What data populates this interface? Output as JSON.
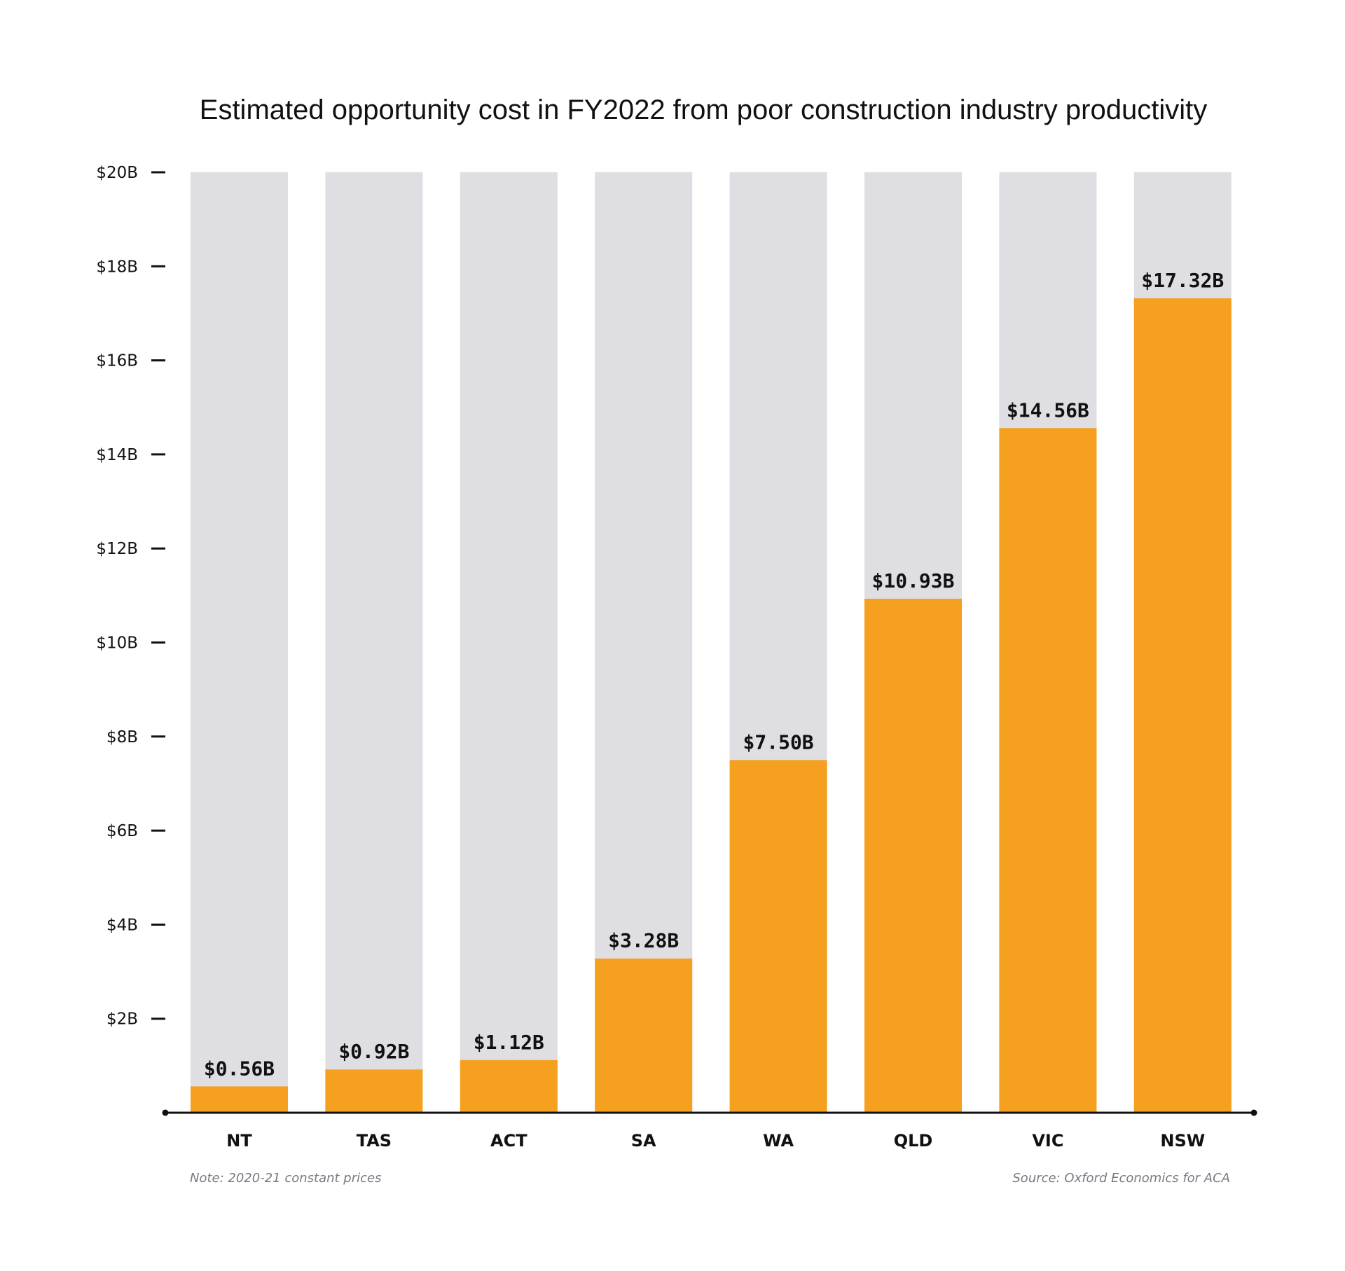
{
  "chart_data": {
    "type": "bar",
    "title": "Estimated opportunity cost in FY2022 from poor construction industry productivity",
    "categories": [
      "NT",
      "TAS",
      "ACT",
      "SA",
      "WA",
      "QLD",
      "VIC",
      "NSW"
    ],
    "values": [
      0.56,
      0.92,
      1.12,
      3.28,
      7.5,
      10.93,
      14.56,
      17.32
    ],
    "value_labels": [
      "$0.56B",
      "$0.92B",
      "$1.12B",
      "$3.28B",
      "$7.50B",
      "$10.93B",
      "$14.56B",
      "$17.32B"
    ],
    "ylim": [
      0,
      20
    ],
    "yticks": [
      2,
      4,
      6,
      8,
      10,
      12,
      14,
      16,
      18,
      20
    ],
    "ytick_labels": [
      "$2B",
      "$4B",
      "$6B",
      "$8B",
      "$10B",
      "$12B",
      "$14B",
      "$16B",
      "$18B",
      "$20B"
    ],
    "xlabel": "",
    "ylabel": "",
    "grid": false,
    "legend": "none",
    "colors": {
      "bar": "#F6A020",
      "bar_background": "#DEDEE3",
      "axis": "#111111",
      "note": "#7a7a85"
    }
  },
  "note": "Note: 2020-21 constant prices",
  "source": "Source: Oxford Economics for ACA"
}
